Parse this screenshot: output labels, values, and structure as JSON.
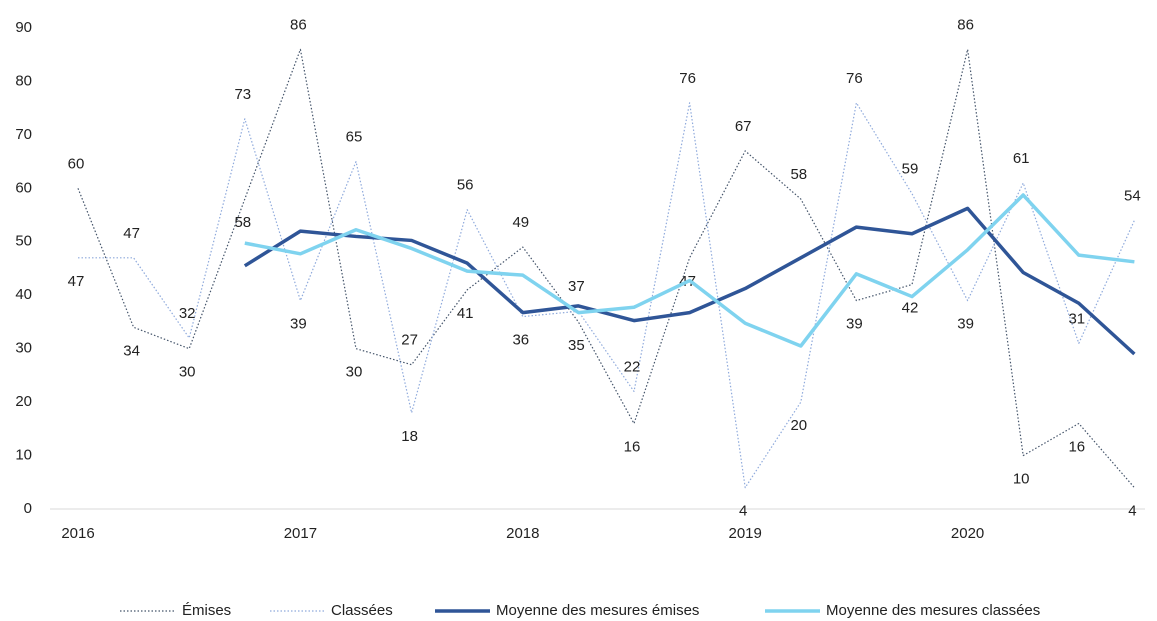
{
  "chart_data": {
    "type": "line",
    "categories": [
      "2016",
      null,
      null,
      null,
      "2017",
      null,
      null,
      null,
      "2018",
      null,
      null,
      null,
      "2019",
      null,
      null,
      null,
      "2020",
      null,
      null,
      null
    ],
    "series": [
      {
        "name": "Émises",
        "color": "#44546a",
        "line_style": "dotted",
        "data_labels": true,
        "values": [
          60,
          34,
          30,
          58,
          86,
          30,
          27,
          41,
          49,
          35,
          16,
          47,
          67,
          58,
          39,
          42,
          86,
          10,
          16,
          4
        ]
      },
      {
        "name": "Classées",
        "color": "#8faadc",
        "line_style": "dotted",
        "data_labels": true,
        "values": [
          47,
          47,
          32,
          73,
          39,
          65,
          18,
          56,
          36,
          37,
          22,
          76,
          4,
          20,
          76,
          59,
          39,
          61,
          31,
          54
        ]
      },
      {
        "name": "Moyenne des mesures émises",
        "color": "#2f5597",
        "line_style": "solid",
        "data_labels": false,
        "values": [
          null,
          null,
          null,
          45.5,
          52,
          51,
          50.25,
          46,
          36.75,
          38,
          35.25,
          36.75,
          41.25,
          47,
          52.75,
          51.5,
          56.25,
          44.25,
          38.5,
          29
        ]
      },
      {
        "name": "Moyenne des mesures classées",
        "color": "#7fd3ef",
        "line_style": "solid",
        "data_labels": false,
        "values": [
          null,
          null,
          null,
          49.75,
          47.75,
          52.25,
          48.75,
          44.5,
          43.75,
          36.75,
          37.75,
          42.75,
          34.75,
          30.5,
          44,
          39.75,
          48.5,
          58.75,
          47.5,
          46.25
        ]
      }
    ],
    "ylim": [
      0,
      90
    ],
    "yticks": [
      0,
      10,
      20,
      30,
      40,
      50,
      60,
      70,
      80,
      90
    ],
    "grid": false,
    "legend": "bottom"
  }
}
